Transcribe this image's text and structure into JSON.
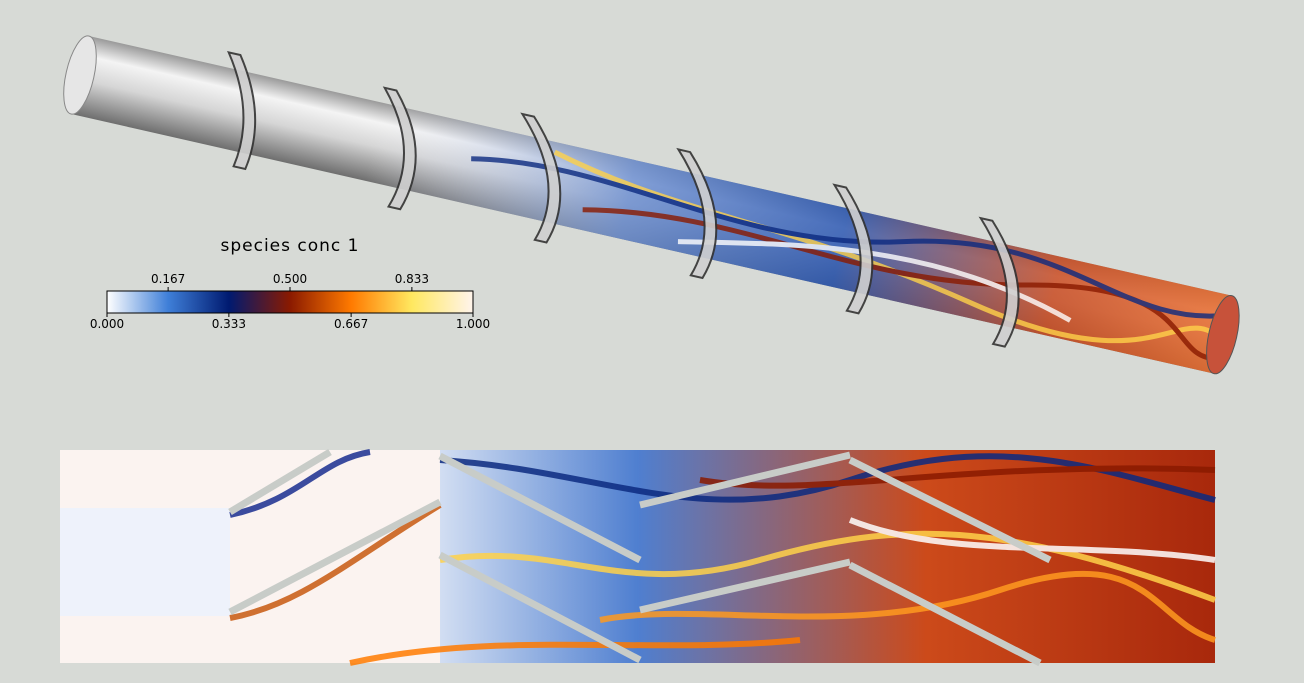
{
  "colorbar": {
    "title": "species conc 1",
    "range": [
      0,
      1
    ],
    "colormap": [
      "#ffffff",
      "#3f7fd8",
      "#001a70",
      "#8a1a00",
      "#ff7a00",
      "#ffe860",
      "#fff4ec"
    ],
    "ticks": [
      {
        "value": 0,
        "label": "0.000"
      },
      0.167,
      0.333,
      {
        "value": 0.5,
        "label": "0.500"
      },
      0.667,
      0.833,
      {
        "value": 1,
        "label": "1.000"
      }
    ]
  }
}
